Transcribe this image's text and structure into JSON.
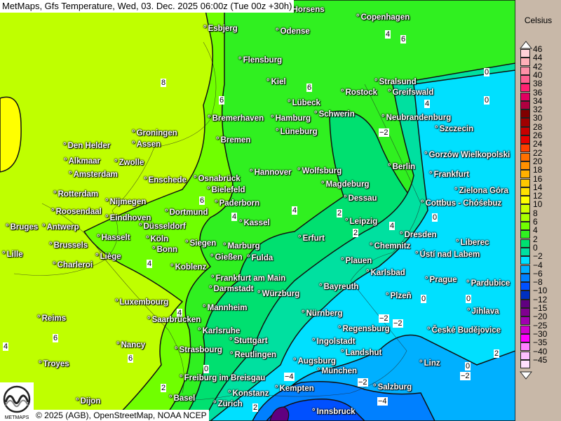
{
  "header": {
    "title": "MetMaps, Gfs Temperature, Wed, 03. Dec. 2025 06:00z (Tue 00z +30h)"
  },
  "footer": {
    "copyright": "© 2025 (AGB), OpenStreetMap, NOAA NCEP",
    "logo_text": "METMAPS"
  },
  "legend": {
    "unit": "Celsius",
    "levels": [
      {
        "v": "46",
        "c": "#ffd0d8"
      },
      {
        "v": "44",
        "c": "#ffb0b8"
      },
      {
        "v": "42",
        "c": "#ff90a8"
      },
      {
        "v": "40",
        "c": "#ff6090"
      },
      {
        "v": "38",
        "c": "#ff2070"
      },
      {
        "v": "36",
        "c": "#e00060"
      },
      {
        "v": "34",
        "c": "#b00040"
      },
      {
        "v": "32",
        "c": "#800000"
      },
      {
        "v": "30",
        "c": "#a00000"
      },
      {
        "v": "28",
        "c": "#c80000"
      },
      {
        "v": "26",
        "c": "#e80000"
      },
      {
        "v": "24",
        "c": "#ff4000"
      },
      {
        "v": "22",
        "c": "#ff7000"
      },
      {
        "v": "20",
        "c": "#ff9000"
      },
      {
        "v": "18",
        "c": "#ffb000"
      },
      {
        "v": "16",
        "c": "#ffc800"
      },
      {
        "v": "14",
        "c": "#ffe000"
      },
      {
        "v": "12",
        "c": "#ffff00"
      },
      {
        "v": "10",
        "c": "#d0ff00"
      },
      {
        "v": "8",
        "c": "#a8ff00"
      },
      {
        "v": "6",
        "c": "#70ff00"
      },
      {
        "v": "4",
        "c": "#30f020"
      },
      {
        "v": "2",
        "c": "#00e070"
      },
      {
        "v": "0",
        "c": "#00e0a0"
      },
      {
        "v": "−2",
        "c": "#00e0ff"
      },
      {
        "v": "−4",
        "c": "#00b0ff"
      },
      {
        "v": "−6",
        "c": "#0080ff"
      },
      {
        "v": "−8",
        "c": "#0050ff"
      },
      {
        "v": "−10",
        "c": "#0030c0"
      },
      {
        "v": "−12",
        "c": "#600080"
      },
      {
        "v": "−15",
        "c": "#800090"
      },
      {
        "v": "−20",
        "c": "#a000b0"
      },
      {
        "v": "−25",
        "c": "#d000d0"
      },
      {
        "v": "−30",
        "c": "#ff00ff"
      },
      {
        "v": "−35",
        "c": "#ff80ff"
      },
      {
        "v": "−40",
        "c": "#ffc0ff"
      },
      {
        "v": "−45",
        "c": "#ffe0ff"
      }
    ]
  },
  "cities": [
    "Horsens",
    "Esbjerg",
    "Odense",
    "Copenhagen",
    "Flensburg",
    "Kiel",
    "Stralsund",
    "Rostock",
    "Greifswald",
    "Lübeck",
    "Schwerin",
    "Neubrandenburg",
    "Szczecin",
    "Bremerhaven",
    "Hamburg",
    "Groningen",
    "Lüneburg",
    "Assen",
    "Bremen",
    "Den Helder",
    "Alkmaar",
    "Zwolle",
    "Amsterdam",
    "Gorzów Wielkopolski",
    "Berlin",
    "Hannover",
    "Wolfsburg",
    "Frankfurt",
    "Enschede",
    "Osnabrück",
    "Rotterdam",
    "Nijmegen",
    "Bielefeld",
    "Magdeburg",
    "Zielona Góra",
    "Dessau",
    "Cottbus - Chóśebuz",
    "Paderborn",
    "Roosendaal",
    "Eindhoven",
    "Dortmund",
    "Kassel",
    "Leipzig",
    "Bruges",
    "Antwerp",
    "Düsseldorf",
    "Dresden",
    "Hasselt",
    "Köln",
    "Erfurt",
    "Brussels",
    "Siegen",
    "Marburg",
    "Chemnitz",
    "Ústí nad Labem",
    "Liberec",
    "Lille",
    "Bonn",
    "Liège",
    "Gießen",
    "Fulda",
    "Plauen",
    "Charleroi",
    "Koblenz",
    "Karlsbad",
    "Frankfurt am Main",
    "Prague",
    "Pardubice",
    "Darmstadt",
    "Bayreuth",
    "Würzburg",
    "Plzeň",
    "Luxembourg",
    "Mannheim",
    "Nürnberg",
    "Jihlava",
    "Saarbrücken",
    "Reims",
    "Regensburg",
    "České Budějovice",
    "Karlsruhe",
    "Stuttgart",
    "Ingolstadt",
    "Nancy",
    "Strasbourg",
    "Landshut",
    "Reutlingen",
    "Augsburg",
    "Troyes",
    "Linz",
    "München",
    "Freiburg im Breisgau",
    "Salzburg",
    "Kempten",
    "Konstanz",
    "Basel",
    "Zürich",
    "Innsbruck",
    "Dijon"
  ],
  "contour_labels": [
    "8",
    "6",
    "6",
    "4",
    "6",
    "0",
    "4",
    "6",
    "4",
    "4",
    "2",
    "2",
    "0",
    "0",
    "−2",
    "0",
    "0",
    "−2",
    "4",
    "4",
    "6",
    "6",
    "4",
    "2",
    "0",
    "−4",
    "−2",
    "−2",
    "2",
    "0",
    "−2",
    "2",
    "4",
    "−4"
  ]
}
